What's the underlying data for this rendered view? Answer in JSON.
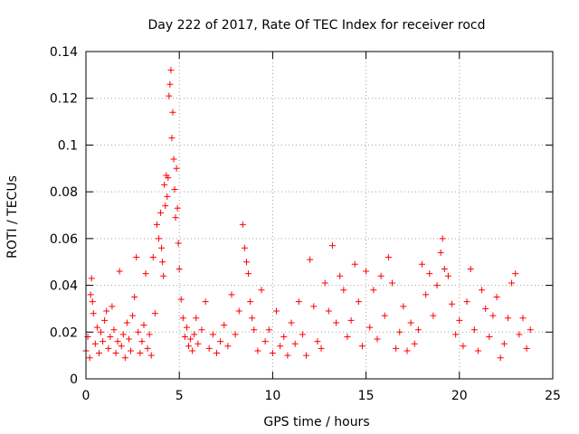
{
  "chart_data": {
    "type": "scatter",
    "title": "Day 222 of 2017, Rate Of TEC Index for receiver rocd",
    "xlabel": "GPS time / hours",
    "ylabel": "ROTI / TECUs",
    "xlim": [
      0,
      25
    ],
    "ylim": [
      0,
      0.14
    ],
    "xticks": [
      0,
      5,
      10,
      15,
      20,
      25
    ],
    "yticks": [
      0,
      0.02,
      0.04,
      0.06,
      0.08,
      0.1,
      0.12,
      0.14
    ],
    "xtick_labels": [
      "0",
      "5",
      "10",
      "15",
      "20",
      "25"
    ],
    "ytick_labels": [
      "0",
      "0.02",
      "0.04",
      "0.06",
      "0.08",
      "0.1",
      "0.12",
      "0.14"
    ],
    "grid": true,
    "marker": "+",
    "color": "#ff0000",
    "series": [
      {
        "name": "ROTI",
        "points": [
          [
            0.0,
            0.012
          ],
          [
            0.1,
            0.018
          ],
          [
            0.2,
            0.009
          ],
          [
            0.25,
            0.036
          ],
          [
            0.3,
            0.043
          ],
          [
            0.35,
            0.033
          ],
          [
            0.4,
            0.028
          ],
          [
            0.5,
            0.015
          ],
          [
            0.6,
            0.022
          ],
          [
            0.7,
            0.011
          ],
          [
            0.8,
            0.02
          ],
          [
            0.9,
            0.016
          ],
          [
            1.0,
            0.025
          ],
          [
            1.1,
            0.029
          ],
          [
            1.2,
            0.013
          ],
          [
            1.3,
            0.018
          ],
          [
            1.4,
            0.031
          ],
          [
            1.5,
            0.021
          ],
          [
            1.6,
            0.011
          ],
          [
            1.7,
            0.016
          ],
          [
            1.8,
            0.046
          ],
          [
            1.9,
            0.014
          ],
          [
            2.0,
            0.019
          ],
          [
            2.1,
            0.009
          ],
          [
            2.2,
            0.024
          ],
          [
            2.3,
            0.017
          ],
          [
            2.4,
            0.012
          ],
          [
            2.5,
            0.027
          ],
          [
            2.6,
            0.035
          ],
          [
            2.7,
            0.052
          ],
          [
            2.8,
            0.02
          ],
          [
            2.9,
            0.011
          ],
          [
            3.0,
            0.016
          ],
          [
            3.1,
            0.023
          ],
          [
            3.2,
            0.045
          ],
          [
            3.3,
            0.013
          ],
          [
            3.4,
            0.019
          ],
          [
            3.5,
            0.01
          ],
          [
            3.6,
            0.052
          ],
          [
            3.7,
            0.028
          ],
          [
            3.8,
            0.066
          ],
          [
            3.9,
            0.06
          ],
          [
            4.0,
            0.071
          ],
          [
            4.05,
            0.056
          ],
          [
            4.1,
            0.05
          ],
          [
            4.15,
            0.044
          ],
          [
            4.2,
            0.083
          ],
          [
            4.25,
            0.074
          ],
          [
            4.3,
            0.087
          ],
          [
            4.35,
            0.078
          ],
          [
            4.4,
            0.086
          ],
          [
            4.45,
            0.121
          ],
          [
            4.5,
            0.126
          ],
          [
            4.55,
            0.132
          ],
          [
            4.6,
            0.103
          ],
          [
            4.65,
            0.114
          ],
          [
            4.7,
            0.094
          ],
          [
            4.75,
            0.081
          ],
          [
            4.8,
            0.069
          ],
          [
            4.85,
            0.09
          ],
          [
            4.9,
            0.073
          ],
          [
            4.95,
            0.058
          ],
          [
            5.0,
            0.047
          ],
          [
            5.1,
            0.034
          ],
          [
            5.2,
            0.026
          ],
          [
            5.3,
            0.018
          ],
          [
            5.4,
            0.022
          ],
          [
            5.5,
            0.014
          ],
          [
            5.6,
            0.017
          ],
          [
            5.7,
            0.012
          ],
          [
            5.8,
            0.019
          ],
          [
            5.9,
            0.026
          ],
          [
            6.0,
            0.015
          ],
          [
            6.2,
            0.021
          ],
          [
            6.4,
            0.033
          ],
          [
            6.6,
            0.013
          ],
          [
            6.8,
            0.019
          ],
          [
            7.0,
            0.011
          ],
          [
            7.2,
            0.016
          ],
          [
            7.4,
            0.023
          ],
          [
            7.6,
            0.014
          ],
          [
            7.8,
            0.036
          ],
          [
            8.0,
            0.019
          ],
          [
            8.2,
            0.029
          ],
          [
            8.4,
            0.066
          ],
          [
            8.5,
            0.056
          ],
          [
            8.6,
            0.05
          ],
          [
            8.7,
            0.045
          ],
          [
            8.8,
            0.033
          ],
          [
            8.9,
            0.026
          ],
          [
            9.0,
            0.021
          ],
          [
            9.2,
            0.012
          ],
          [
            9.4,
            0.038
          ],
          [
            9.6,
            0.016
          ],
          [
            9.8,
            0.021
          ],
          [
            10.0,
            0.011
          ],
          [
            10.2,
            0.029
          ],
          [
            10.4,
            0.014
          ],
          [
            10.6,
            0.018
          ],
          [
            10.8,
            0.01
          ],
          [
            11.0,
            0.024
          ],
          [
            11.2,
            0.015
          ],
          [
            11.4,
            0.033
          ],
          [
            11.6,
            0.019
          ],
          [
            11.8,
            0.01
          ],
          [
            12.0,
            0.051
          ],
          [
            12.2,
            0.031
          ],
          [
            12.4,
            0.016
          ],
          [
            12.6,
            0.013
          ],
          [
            12.8,
            0.041
          ],
          [
            13.0,
            0.029
          ],
          [
            13.2,
            0.057
          ],
          [
            13.4,
            0.024
          ],
          [
            13.6,
            0.044
          ],
          [
            13.8,
            0.038
          ],
          [
            14.0,
            0.018
          ],
          [
            14.2,
            0.025
          ],
          [
            14.4,
            0.049
          ],
          [
            14.6,
            0.033
          ],
          [
            14.8,
            0.014
          ],
          [
            15.0,
            0.046
          ],
          [
            15.2,
            0.022
          ],
          [
            15.4,
            0.038
          ],
          [
            15.6,
            0.017
          ],
          [
            15.8,
            0.044
          ],
          [
            16.0,
            0.027
          ],
          [
            16.2,
            0.052
          ],
          [
            16.4,
            0.041
          ],
          [
            16.6,
            0.013
          ],
          [
            16.8,
            0.02
          ],
          [
            17.0,
            0.031
          ],
          [
            17.2,
            0.012
          ],
          [
            17.4,
            0.024
          ],
          [
            17.6,
            0.015
          ],
          [
            17.8,
            0.021
          ],
          [
            18.0,
            0.049
          ],
          [
            18.2,
            0.036
          ],
          [
            18.4,
            0.045
          ],
          [
            18.6,
            0.027
          ],
          [
            18.8,
            0.04
          ],
          [
            19.0,
            0.054
          ],
          [
            19.1,
            0.06
          ],
          [
            19.2,
            0.047
          ],
          [
            19.4,
            0.044
          ],
          [
            19.6,
            0.032
          ],
          [
            19.8,
            0.019
          ],
          [
            20.0,
            0.025
          ],
          [
            20.2,
            0.014
          ],
          [
            20.4,
            0.033
          ],
          [
            20.6,
            0.047
          ],
          [
            20.8,
            0.021
          ],
          [
            21.0,
            0.012
          ],
          [
            21.2,
            0.038
          ],
          [
            21.4,
            0.03
          ],
          [
            21.6,
            0.018
          ],
          [
            21.8,
            0.027
          ],
          [
            22.0,
            0.035
          ],
          [
            22.2,
            0.009
          ],
          [
            22.4,
            0.015
          ],
          [
            22.6,
            0.026
          ],
          [
            22.8,
            0.041
          ],
          [
            23.0,
            0.045
          ],
          [
            23.2,
            0.019
          ],
          [
            23.4,
            0.026
          ],
          [
            23.6,
            0.013
          ],
          [
            23.8,
            0.021
          ]
        ]
      }
    ]
  }
}
